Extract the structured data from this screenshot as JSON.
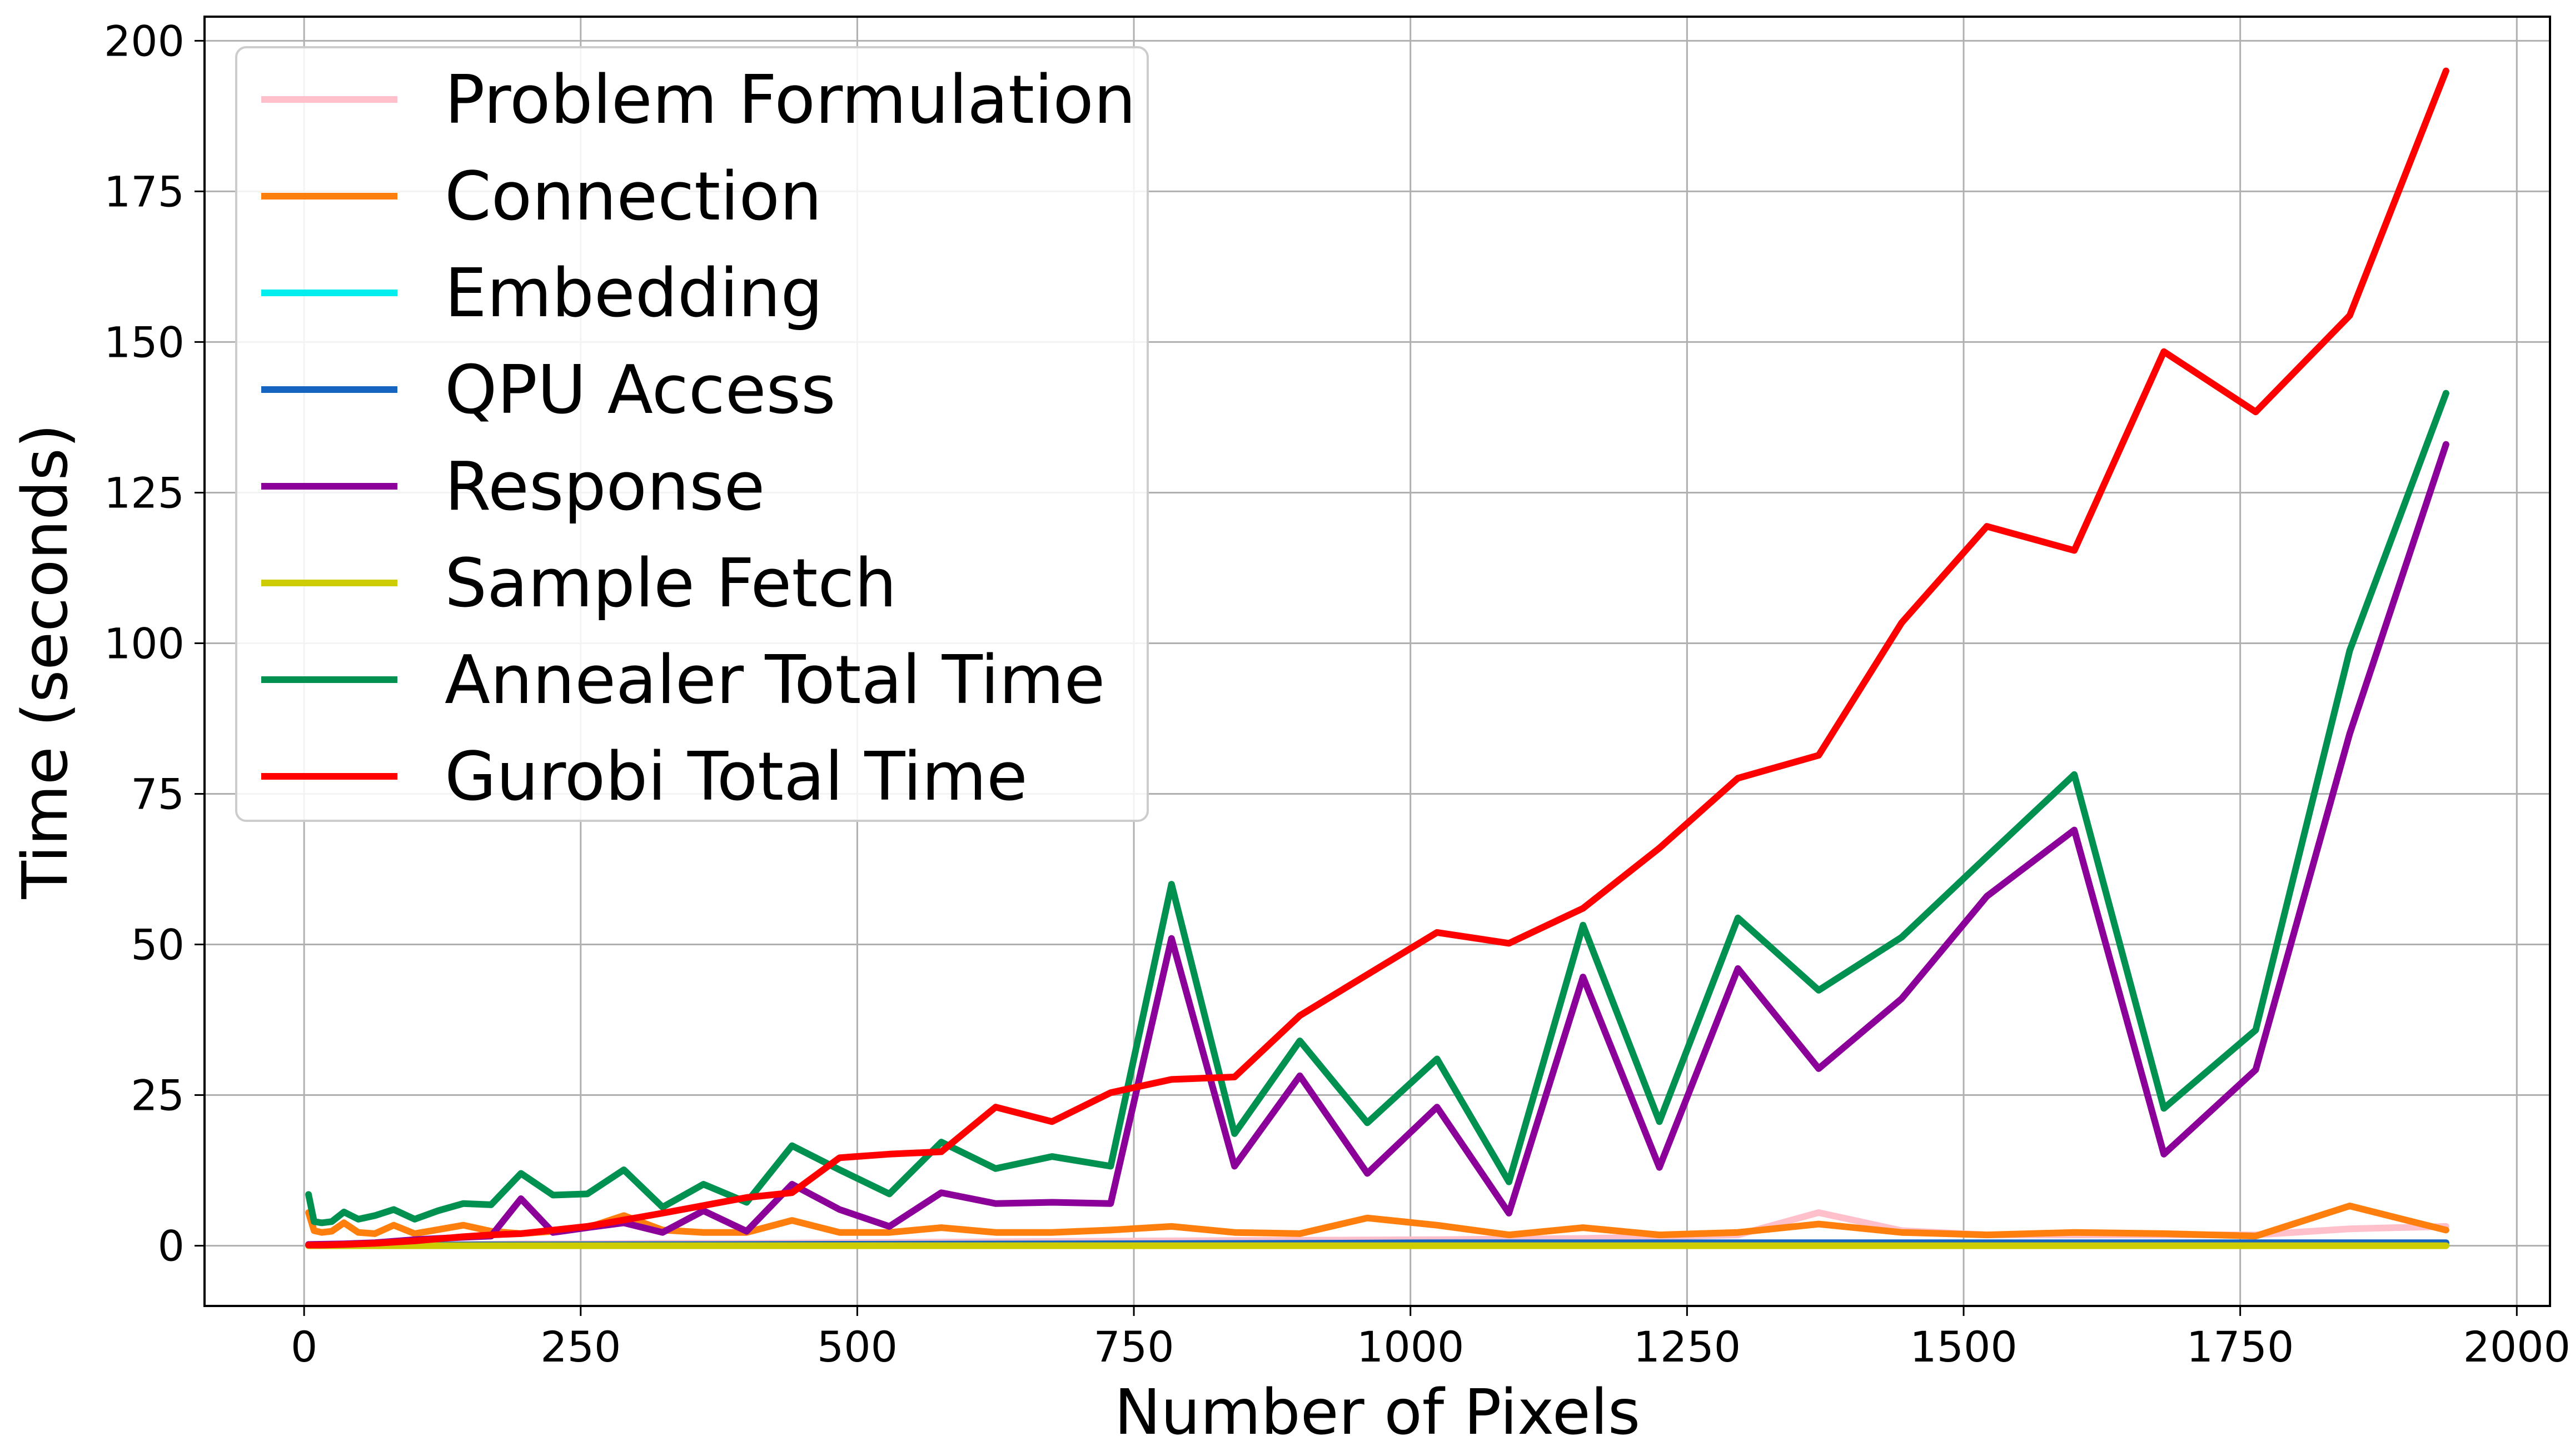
{
  "chart_data": {
    "type": "line",
    "title": "",
    "xlabel": "Number of Pixels",
    "ylabel": "Time (seconds)",
    "xlim": [
      -90,
      2030
    ],
    "ylim": [
      -10,
      204
    ],
    "xticks": [
      0,
      250,
      500,
      750,
      1000,
      1250,
      1500,
      1750,
      2000
    ],
    "xtick_labels": [
      "0",
      "250",
      "500",
      "750",
      "1000",
      "1250",
      "1500",
      "1750",
      "2000"
    ],
    "yticks": [
      0,
      25,
      50,
      75,
      100,
      125,
      150,
      175,
      200
    ],
    "ytick_labels": [
      "0",
      "25",
      "50",
      "75",
      "100",
      "125",
      "150",
      "175",
      "200"
    ],
    "grid": true,
    "legend_position": "top-left",
    "series": [
      {
        "name": "Problem Formulation",
        "color": "#ffc0cb",
        "x": [
          4,
          16,
          36,
          64,
          100,
          144,
          196,
          256,
          324,
          400,
          484,
          576,
          676,
          784,
          900,
          1024,
          1156,
          1296,
          1369,
          1444,
          1521,
          1600,
          1681,
          1764,
          1849,
          1936
        ],
        "y": [
          0.1,
          0.1,
          0.1,
          0.1,
          0.2,
          0.2,
          0.3,
          0.3,
          0.4,
          0.4,
          0.5,
          0.6,
          0.7,
          0.8,
          0.9,
          1.0,
          1.2,
          1.8,
          5.5,
          2.5,
          1.8,
          1.8,
          1.8,
          1.8,
          2.8,
          3.2
        ]
      },
      {
        "name": "Connection",
        "color": "#ff7f0e",
        "x": [
          4,
          9,
          16,
          25,
          36,
          49,
          64,
          81,
          100,
          144,
          169,
          196,
          225,
          256,
          289,
          324,
          361,
          400,
          441,
          484,
          529,
          576,
          625,
          676,
          729,
          784,
          841,
          900,
          961,
          1024,
          1089,
          1156,
          1225,
          1296,
          1369,
          1444,
          1521,
          1600,
          1681,
          1764,
          1849,
          1936
        ],
        "y": [
          5.5,
          2.5,
          2.2,
          2.4,
          3.8,
          2.2,
          2.0,
          3.4,
          2.0,
          3.4,
          2.4,
          2.0,
          2.4,
          3.0,
          5.0,
          2.6,
          2.2,
          2.2,
          4.2,
          2.2,
          2.2,
          3.0,
          2.2,
          2.2,
          2.6,
          3.2,
          2.2,
          2.0,
          4.6,
          3.4,
          1.8,
          3.0,
          1.8,
          2.2,
          3.6,
          2.2,
          1.8,
          2.2,
          2.0,
          1.6,
          6.6,
          2.6
        ]
      },
      {
        "name": "Embedding",
        "color": "#00eeee",
        "x": [
          4,
          100,
          400,
          900,
          1600,
          1936
        ],
        "y": [
          0.1,
          0.1,
          0.1,
          0.1,
          0.1,
          0.1
        ]
      },
      {
        "name": "QPU Access",
        "color": "#1565c0",
        "x": [
          4,
          400,
          900,
          1024,
          1600,
          1936
        ],
        "y": [
          0.1,
          0.2,
          0.4,
          0.5,
          0.5,
          0.5
        ]
      },
      {
        "name": "Response",
        "color": "#8b0099",
        "x": [
          4,
          36,
          64,
          100,
          144,
          169,
          196,
          225,
          256,
          289,
          324,
          361,
          400,
          441,
          484,
          529,
          576,
          625,
          676,
          729,
          784,
          841,
          900,
          961,
          1024,
          1089,
          1156,
          1225,
          1296,
          1369,
          1444,
          1521,
          1600,
          1681,
          1764,
          1849,
          1936
        ],
        "y": [
          0.2,
          0.3,
          0.5,
          1.0,
          1.4,
          1.6,
          7.8,
          2.2,
          3.0,
          3.8,
          2.2,
          5.8,
          2.4,
          10.2,
          6.0,
          3.2,
          8.8,
          7.0,
          7.2,
          7.0,
          51.0,
          13.2,
          28.2,
          12.0,
          23.0,
          5.4,
          44.6,
          13.0,
          46.0,
          29.4,
          41.0,
          58.0,
          69.0,
          15.2,
          29.2,
          85.0,
          133.0
        ]
      },
      {
        "name": "Sample Fetch",
        "color": "#cccc00",
        "x": [
          4,
          400,
          900,
          1400,
          1936
        ],
        "y": [
          0.0,
          0.0,
          0.0,
          0.0,
          0.0
        ]
      },
      {
        "name": "Annealer Total Time",
        "color": "#009150",
        "x": [
          4,
          9,
          16,
          25,
          36,
          49,
          64,
          81,
          100,
          121,
          144,
          169,
          196,
          225,
          256,
          289,
          324,
          361,
          400,
          441,
          484,
          529,
          576,
          625,
          676,
          729,
          784,
          841,
          900,
          961,
          1024,
          1089,
          1156,
          1225,
          1296,
          1369,
          1444,
          1521,
          1600,
          1681,
          1764,
          1849,
          1936
        ],
        "y": [
          8.5,
          4.0,
          3.8,
          4.0,
          5.6,
          4.4,
          5.0,
          6.0,
          4.4,
          5.8,
          7.0,
          6.8,
          12.0,
          8.4,
          8.6,
          12.6,
          6.4,
          10.2,
          7.2,
          16.6,
          12.6,
          8.6,
          17.2,
          12.8,
          14.8,
          13.2,
          60.0,
          18.6,
          34.0,
          20.4,
          31.0,
          10.6,
          53.2,
          20.6,
          54.4,
          42.4,
          51.2,
          64.6,
          78.2,
          22.8,
          35.8,
          98.8,
          141.5
        ]
      },
      {
        "name": "Gurobi Total Time",
        "color": "#ff0000",
        "x": [
          4,
          16,
          36,
          64,
          100,
          144,
          169,
          196,
          256,
          324,
          400,
          441,
          484,
          529,
          576,
          625,
          676,
          729,
          784,
          841,
          900,
          961,
          1024,
          1089,
          1156,
          1225,
          1296,
          1369,
          1444,
          1521,
          1600,
          1681,
          1764,
          1849,
          1936
        ],
        "y": [
          0.1,
          0.1,
          0.2,
          0.4,
          0.8,
          1.5,
          1.8,
          2.0,
          3.2,
          5.4,
          8.0,
          8.8,
          14.6,
          15.2,
          15.6,
          23.0,
          20.6,
          25.4,
          27.6,
          28.0,
          38.2,
          45.0,
          52.0,
          50.2,
          56.0,
          66.0,
          77.6,
          81.4,
          103.4,
          119.4,
          115.4,
          148.4,
          138.4,
          154.4,
          195.0
        ]
      }
    ]
  }
}
